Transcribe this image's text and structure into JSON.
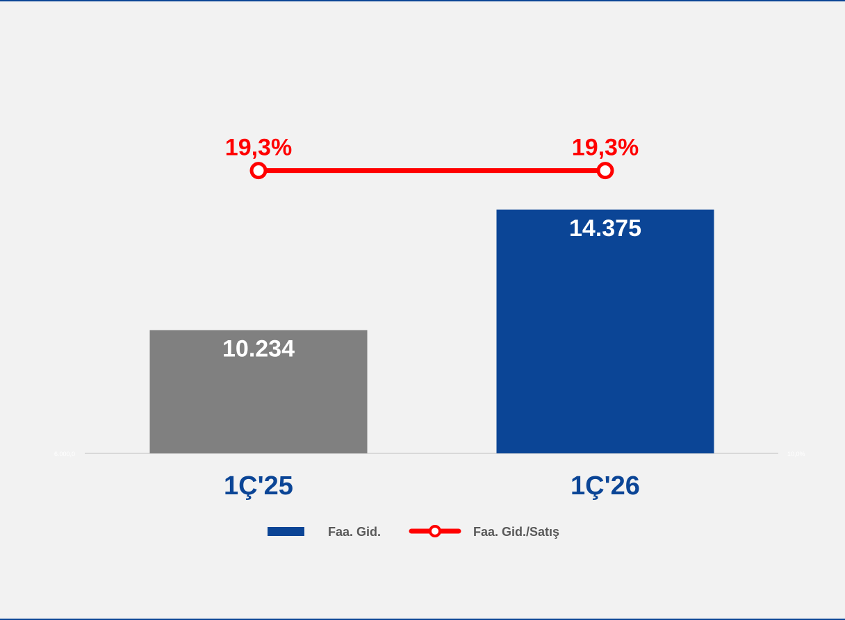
{
  "colors": {
    "background": "#f2f2f2",
    "frame": "#0b4596",
    "bar_prev": "#808080",
    "bar_curr": "#0b4596",
    "line": "#ff0000",
    "category_text": "#0b4596",
    "baseline": "#d9d9d9"
  },
  "chart_data": {
    "type": "bar",
    "categories": [
      "1Ç'25",
      "1Ç'26"
    ],
    "series": [
      {
        "name": "Faa. Gid.",
        "type": "bar",
        "axis": "left",
        "values": [
          10234,
          14375
        ],
        "labels": [
          "10.234",
          "14.375"
        ],
        "colors": [
          "#808080",
          "#0b4596"
        ]
      },
      {
        "name": "Faa. Gid./Satış",
        "type": "line",
        "axis": "right",
        "values": [
          19.3,
          19.3
        ],
        "labels": [
          "19,3%",
          "19,3%"
        ],
        "color": "#ff0000"
      }
    ],
    "y_left": {
      "min": 6000,
      "max": 16000,
      "min_label": "6.000,0"
    },
    "y_right": {
      "min": 10.0,
      "max": 20.0,
      "min_label": "10,0%"
    },
    "legend": {
      "position": "bottom",
      "items": [
        "Faa. Gid.",
        "Faa. Gid./Satış"
      ]
    },
    "grid": false
  }
}
